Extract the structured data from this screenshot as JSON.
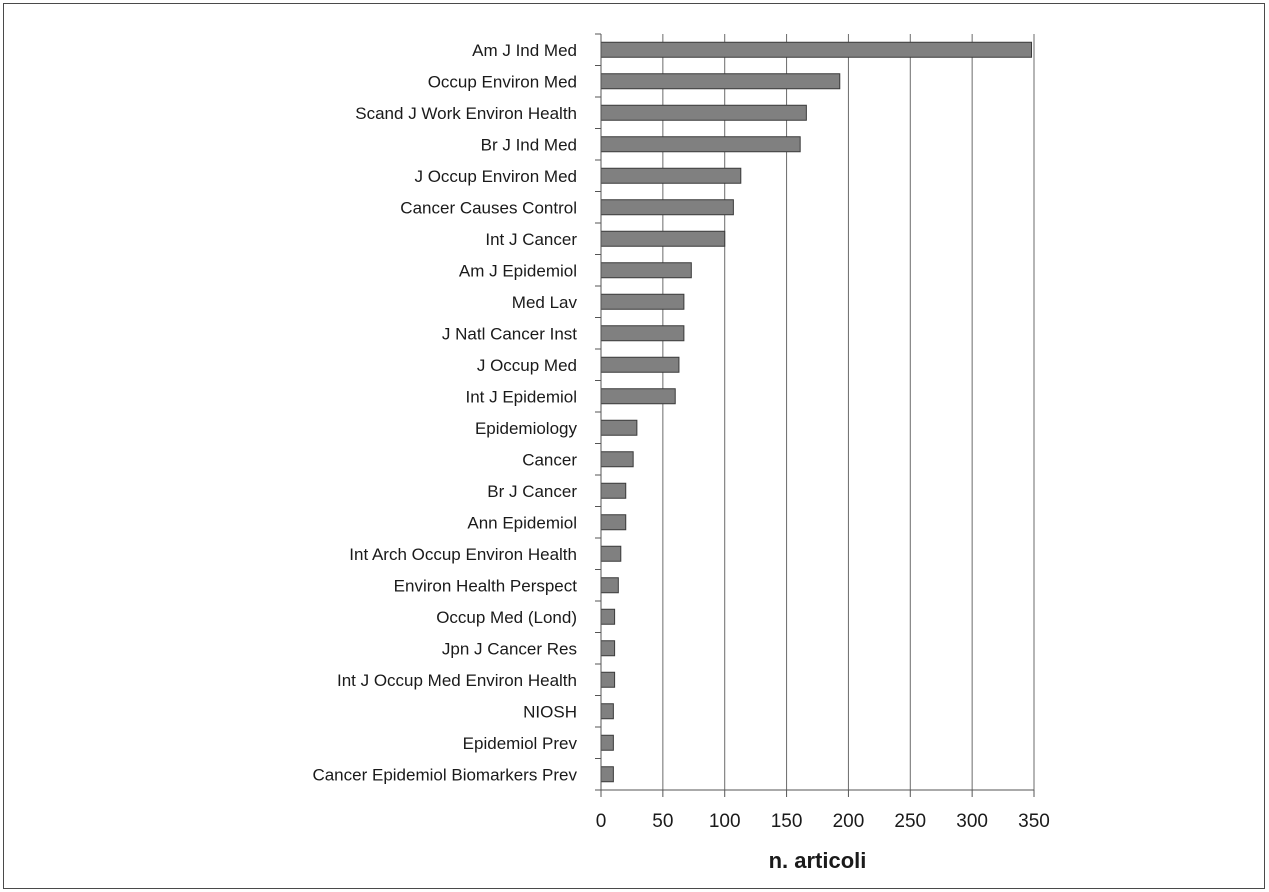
{
  "chart_data": {
    "type": "bar",
    "orientation": "horizontal",
    "title": "",
    "xlabel": "n. articoli",
    "ylabel": "",
    "xlim": [
      0,
      350
    ],
    "xticks": [
      0,
      50,
      100,
      150,
      200,
      250,
      300,
      350
    ],
    "grid": "vertical",
    "legend": "none",
    "bar_color": "#808080",
    "bar_stroke": "#3a3a3a",
    "categories": [
      "Am J Ind Med",
      "Occup Environ Med",
      "Scand J Work Environ Health",
      "Br J Ind Med",
      "J Occup Environ Med",
      "Cancer Causes Control",
      "Int J Cancer",
      "Am J Epidemiol",
      "Med Lav",
      "J Natl Cancer Inst",
      "J Occup Med",
      "Int J Epidemiol",
      "Epidemiology",
      "Cancer",
      "Br J Cancer",
      "Ann Epidemiol",
      "Int Arch Occup Environ Health",
      "Environ Health Perspect",
      "Occup Med (Lond)",
      "Jpn J Cancer Res",
      "Int J Occup Med Environ Health",
      "NIOSH",
      "Epidemiol Prev",
      "Cancer Epidemiol Biomarkers Prev"
    ],
    "values": [
      348,
      193,
      166,
      161,
      113,
      107,
      100,
      73,
      67,
      67,
      63,
      60,
      29,
      26,
      20,
      20,
      16,
      14,
      11,
      11,
      11,
      10,
      10,
      10
    ]
  }
}
